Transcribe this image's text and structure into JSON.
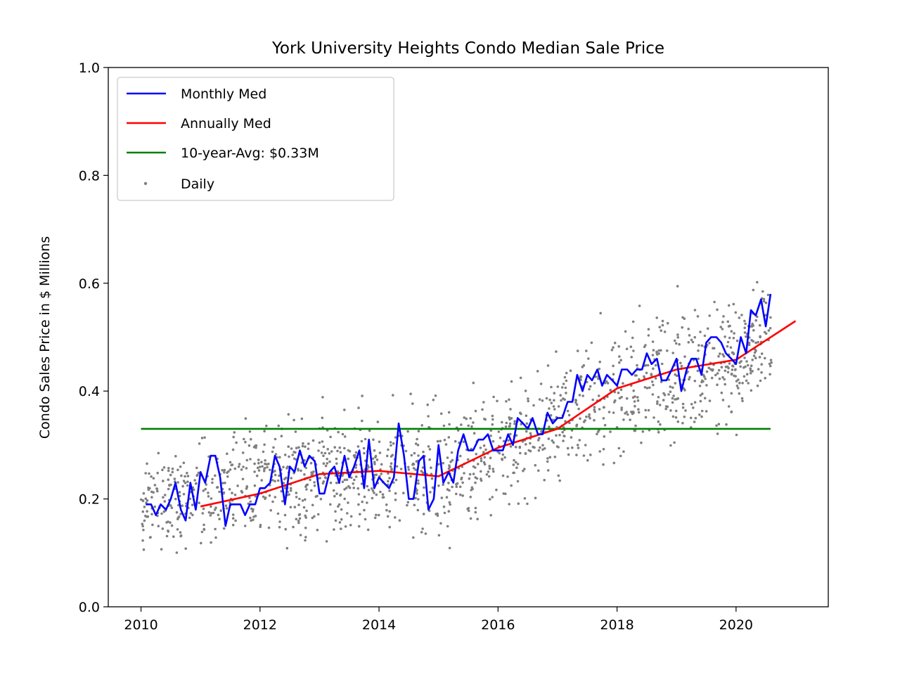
{
  "chart_data": {
    "type": "line",
    "title": "York University Heights Condo Median Sale Price",
    "xlabel": "",
    "ylabel": "Condo Sales Price in $ Millions",
    "xlim": [
      2009.45,
      2021.55
    ],
    "ylim": [
      0.0,
      1.0
    ],
    "x_ticks": [
      2010,
      2012,
      2014,
      2016,
      2018,
      2020
    ],
    "x_tick_labels": [
      "2010",
      "2012",
      "2014",
      "2016",
      "2018",
      "2020"
    ],
    "y_ticks": [
      0.0,
      0.2,
      0.4,
      0.6,
      0.8,
      1.0
    ],
    "y_tick_labels": [
      "0.0",
      "0.2",
      "0.4",
      "0.6",
      "0.8",
      "1.0"
    ],
    "grid": false,
    "legend_position": "top-left",
    "series": [
      {
        "name": "Monthly Med",
        "kind": "line",
        "color": "#0000ff",
        "x": [
          2010.08,
          2010.17,
          2010.25,
          2010.33,
          2010.42,
          2010.5,
          2010.58,
          2010.67,
          2010.75,
          2010.83,
          2010.92,
          2011.0,
          2011.08,
          2011.17,
          2011.25,
          2011.33,
          2011.42,
          2011.5,
          2011.58,
          2011.67,
          2011.75,
          2011.83,
          2011.92,
          2012.0,
          2012.08,
          2012.17,
          2012.25,
          2012.33,
          2012.42,
          2012.5,
          2012.58,
          2012.67,
          2012.75,
          2012.83,
          2012.92,
          2013.0,
          2013.08,
          2013.17,
          2013.25,
          2013.33,
          2013.42,
          2013.5,
          2013.58,
          2013.67,
          2013.75,
          2013.83,
          2013.92,
          2014.0,
          2014.08,
          2014.17,
          2014.25,
          2014.33,
          2014.42,
          2014.5,
          2014.58,
          2014.67,
          2014.75,
          2014.83,
          2014.92,
          2015.0,
          2015.08,
          2015.17,
          2015.25,
          2015.33,
          2015.42,
          2015.5,
          2015.58,
          2015.67,
          2015.75,
          2015.83,
          2015.92,
          2016.0,
          2016.08,
          2016.17,
          2016.25,
          2016.33,
          2016.42,
          2016.5,
          2016.58,
          2016.67,
          2016.75,
          2016.83,
          2016.92,
          2017.0,
          2017.08,
          2017.17,
          2017.25,
          2017.33,
          2017.42,
          2017.5,
          2017.58,
          2017.67,
          2017.75,
          2017.83,
          2017.92,
          2018.0,
          2018.08,
          2018.17,
          2018.25,
          2018.33,
          2018.42,
          2018.5,
          2018.58,
          2018.67,
          2018.75,
          2018.83,
          2018.92,
          2019.0,
          2019.08,
          2019.17,
          2019.25,
          2019.33,
          2019.42,
          2019.5,
          2019.58,
          2019.67,
          2019.75,
          2019.83,
          2019.92,
          2020.0,
          2020.08,
          2020.17,
          2020.25,
          2020.33,
          2020.42,
          2020.5,
          2020.58
        ],
        "y": [
          0.19,
          0.19,
          0.17,
          0.19,
          0.18,
          0.2,
          0.23,
          0.18,
          0.16,
          0.23,
          0.18,
          0.25,
          0.23,
          0.28,
          0.28,
          0.24,
          0.15,
          0.19,
          0.19,
          0.19,
          0.17,
          0.19,
          0.19,
          0.22,
          0.22,
          0.23,
          0.28,
          0.26,
          0.19,
          0.26,
          0.25,
          0.29,
          0.26,
          0.28,
          0.27,
          0.21,
          0.21,
          0.25,
          0.26,
          0.23,
          0.28,
          0.24,
          0.26,
          0.29,
          0.22,
          0.31,
          0.22,
          0.24,
          0.23,
          0.22,
          0.24,
          0.34,
          0.28,
          0.2,
          0.2,
          0.27,
          0.28,
          0.18,
          0.2,
          0.3,
          0.23,
          0.25,
          0.23,
          0.29,
          0.32,
          0.29,
          0.29,
          0.31,
          0.31,
          0.32,
          0.29,
          0.29,
          0.29,
          0.32,
          0.3,
          0.35,
          0.34,
          0.33,
          0.35,
          0.32,
          0.32,
          0.36,
          0.34,
          0.35,
          0.35,
          0.38,
          0.38,
          0.43,
          0.4,
          0.43,
          0.42,
          0.44,
          0.41,
          0.43,
          0.42,
          0.41,
          0.44,
          0.44,
          0.43,
          0.44,
          0.44,
          0.47,
          0.45,
          0.46,
          0.42,
          0.42,
          0.44,
          0.46,
          0.4,
          0.44,
          0.46,
          0.46,
          0.43,
          0.49,
          0.5,
          0.5,
          0.49,
          0.47,
          0.46,
          0.45,
          0.5,
          0.47,
          0.55,
          0.54,
          0.57,
          0.52,
          0.58
        ]
      },
      {
        "name": "Annually Med",
        "kind": "line",
        "color": "#ff0000",
        "x": [
          2011,
          2012,
          2013,
          2014,
          2015,
          2016,
          2017,
          2018,
          2019,
          2020,
          2021
        ],
        "y": [
          0.186,
          0.21,
          0.246,
          0.252,
          0.242,
          0.295,
          0.33,
          0.405,
          0.44,
          0.458,
          0.53
        ]
      },
      {
        "name": "10-year-Avg: $0.33M",
        "kind": "line",
        "color": "#008000",
        "x": [
          2010,
          2020.58
        ],
        "y": [
          0.33,
          0.33
        ]
      },
      {
        "name": "Daily",
        "kind": "scatter",
        "color": "#808080",
        "trend_x": [
          2010.0,
          2011.0,
          2012.0,
          2013.0,
          2014.0,
          2015.0,
          2016.0,
          2017.0,
          2018.0,
          2019.0,
          2020.0,
          2020.6
        ],
        "trend_y": [
          0.18,
          0.21,
          0.23,
          0.245,
          0.25,
          0.245,
          0.29,
          0.34,
          0.41,
          0.44,
          0.46,
          0.5
        ],
        "spread": [
          0.05,
          0.07,
          0.07,
          0.07,
          0.08,
          0.09,
          0.08,
          0.08,
          0.08,
          0.09,
          0.08,
          0.07
        ]
      }
    ]
  }
}
